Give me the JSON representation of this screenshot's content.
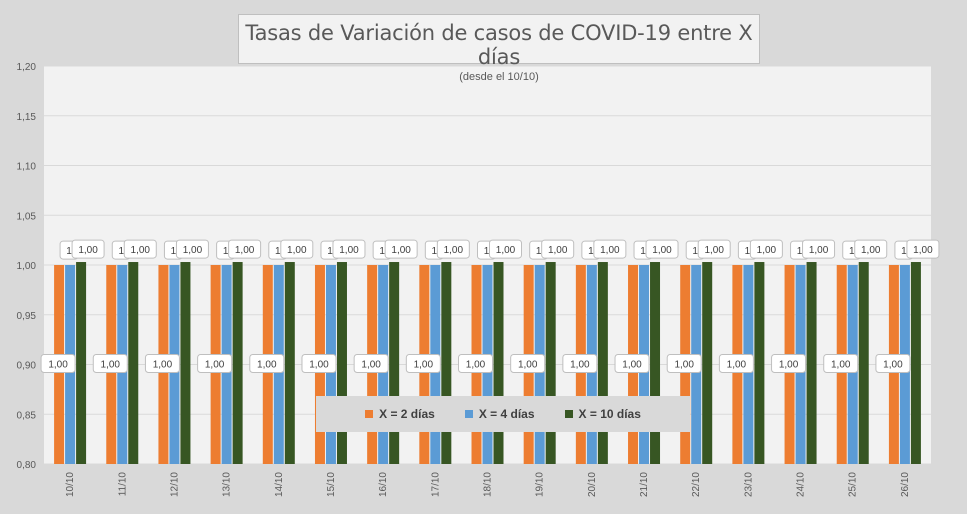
{
  "chart_data": {
    "type": "bar",
    "title": "Tasas de Variación de casos de COVID-19 entre X días",
    "subtitle": "(desde el 10/10)",
    "xlabel": "",
    "ylabel": "",
    "ylim": [
      0.8,
      1.2
    ],
    "yticks": [
      "0,80",
      "0,85",
      "0,90",
      "0,95",
      "1,00",
      "1,05",
      "1,10",
      "1,15",
      "1,20"
    ],
    "categories": [
      "10/10",
      "11/10",
      "12/10",
      "13/10",
      "14/10",
      "15/10",
      "16/10",
      "17/10",
      "18/10",
      "19/10",
      "20/10",
      "21/10",
      "22/10",
      "23/10",
      "24/10",
      "25/10",
      "26/10"
    ],
    "series": [
      {
        "name": "X = 2 días",
        "color": "#ed7d31",
        "values": [
          1.0,
          1.0,
          1.0,
          1.0,
          1.0,
          1.0,
          1.0,
          1.0,
          1.0,
          1.0,
          1.0,
          1.0,
          1.0,
          1.0,
          1.0,
          1.0,
          1.0
        ],
        "labels": [
          "1,00",
          "1,00",
          "1,00",
          "1,00",
          "1,00",
          "1,00",
          "1,00",
          "1,00",
          "1,00",
          "1,00",
          "1,00",
          "1,00",
          "1,00",
          "1,00",
          "1,00",
          "1,00",
          "1,00"
        ]
      },
      {
        "name": "X = 4 días",
        "color": "#5b9bd5",
        "values": [
          1.0,
          1.0,
          1.0,
          1.0,
          1.0,
          1.0,
          1.0,
          1.0,
          1.0,
          1.0,
          1.0,
          1.0,
          1.0,
          1.0,
          1.0,
          1.0,
          1.0
        ],
        "labels": [
          "1",
          "1",
          "1",
          "1",
          "1",
          "1",
          "1",
          "1",
          "1",
          "1",
          "1",
          "1",
          "1",
          "1",
          "1",
          "1",
          "1"
        ]
      },
      {
        "name": "X = 10 días",
        "color": "#375623",
        "values": [
          1.003,
          1.003,
          1.003,
          1.003,
          1.003,
          1.003,
          1.003,
          1.003,
          1.003,
          1.003,
          1.003,
          1.003,
          1.003,
          1.003,
          1.003,
          1.003,
          1.003
        ],
        "labels": [
          "1,00",
          "1,00",
          "1,00",
          "1,00",
          "1,00",
          "1,00",
          "1,00",
          "1,00",
          "1,00",
          "1,00",
          "1,00",
          "1,00",
          "1,00",
          "1,00",
          "1,00",
          "1,00",
          "1,00"
        ]
      }
    ],
    "legend_position": "bottom-center",
    "grid": true
  }
}
